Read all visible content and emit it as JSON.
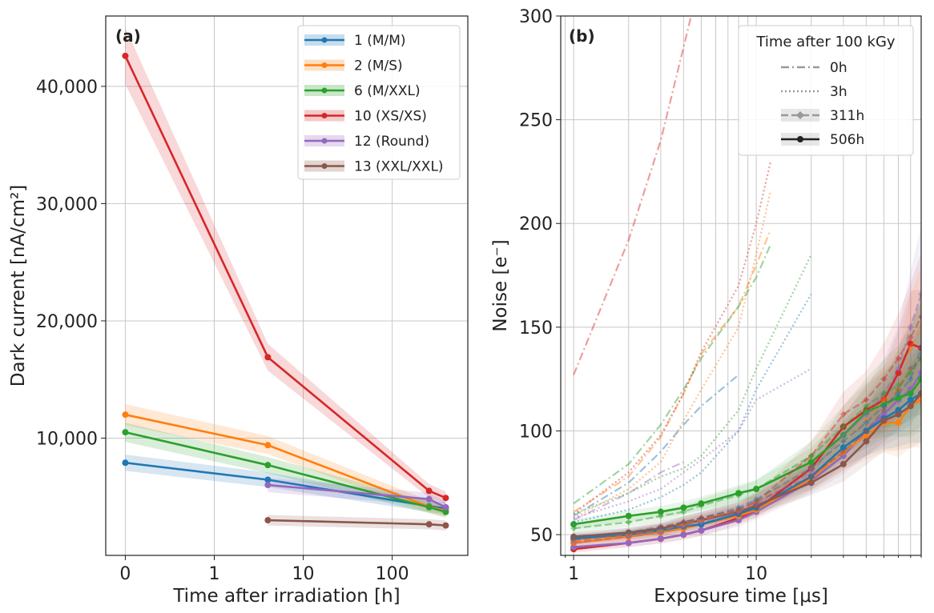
{
  "chart_data": [
    {
      "type": "line",
      "panel_label": "(a)",
      "xlabel": "Time after irradiation [h]",
      "ylabel": "Dark current [nA/cm²]",
      "xscale": "symlog",
      "xticks": [
        0,
        1,
        10,
        100
      ],
      "xtick_labels": [
        "0",
        "1",
        "10",
        "100"
      ],
      "ylim": [
        0,
        46000
      ],
      "yticks": [
        10000,
        20000,
        30000,
        40000
      ],
      "ytick_labels": [
        "10,000",
        "20,000",
        "30,000",
        "40,000"
      ],
      "grid": true,
      "legend_position": "top-right",
      "series": [
        {
          "name": "1 (M/M)",
          "color": "#1f77b4",
          "x": [
            0,
            4,
            260,
            400
          ],
          "y": [
            7900,
            6450,
            4200,
            4000
          ]
        },
        {
          "name": "2 (M/S)",
          "color": "#ff7f0e",
          "x": [
            0,
            4,
            260,
            400
          ],
          "y": [
            12000,
            9400,
            4150,
            3800
          ]
        },
        {
          "name": "6 (M/XXL)",
          "color": "#2ca02c",
          "x": [
            0,
            4,
            260,
            400
          ],
          "y": [
            10500,
            7700,
            4100,
            3700
          ]
        },
        {
          "name": "10 (XS/XS)",
          "color": "#d62728",
          "x": [
            0,
            4,
            260,
            400
          ],
          "y": [
            42600,
            16900,
            5500,
            4900
          ]
        },
        {
          "name": "12 (Round)",
          "color": "#9467bd",
          "x": [
            4,
            260,
            400
          ],
          "y": [
            6000,
            4800,
            4100
          ]
        },
        {
          "name": "13 (XXL/XXL)",
          "color": "#8c564b",
          "x": [
            4,
            260,
            400
          ],
          "y": [
            3000,
            2650,
            2550
          ]
        }
      ]
    },
    {
      "type": "line",
      "panel_label": "(b)",
      "xlabel": "Exposure time [μs]",
      "ylabel": "Noise [e⁻]",
      "xscale": "log",
      "xlim": [
        0.85,
        80
      ],
      "xticks": [
        1,
        10
      ],
      "xtick_labels": [
        "1",
        "10"
      ],
      "ylim": [
        40,
        300
      ],
      "yticks": [
        50,
        100,
        150,
        200,
        250,
        300
      ],
      "ytick_labels": [
        "50",
        "100",
        "150",
        "200",
        "250",
        "300"
      ],
      "grid": true,
      "legend_title": "Time after 100 kGy",
      "legend_position": "top-right",
      "legend_entries": [
        {
          "label": "0h",
          "style": "dashdot"
        },
        {
          "label": "3h",
          "style": "dotted"
        },
        {
          "label": "311h",
          "style": "dashed"
        },
        {
          "label": "506h",
          "style": "solid"
        }
      ],
      "x_full": [
        1,
        2,
        3,
        4,
        5,
        8,
        10,
        20,
        30,
        40,
        50,
        60,
        70,
        80
      ],
      "series": [
        {
          "color": "#d62728",
          "style": "solid",
          "y": [
            43,
            46,
            48,
            50,
            52,
            58,
            62,
            82,
            102,
            110,
            115,
            128,
            142,
            140
          ]
        },
        {
          "color": "#9467bd",
          "style": "solid",
          "y": [
            44,
            46,
            48,
            50,
            52,
            57,
            61,
            76,
            88,
            100,
            108,
            115,
            120,
            128
          ]
        },
        {
          "color": "#ff7f0e",
          "style": "solid",
          "y": [
            46,
            49,
            51,
            53,
            55,
            59,
            62,
            77,
            90,
            98,
            104,
            104,
            112,
            115
          ]
        },
        {
          "color": "#1f77b4",
          "style": "solid",
          "y": [
            48,
            50,
            52,
            54,
            55,
            60,
            63,
            78,
            92,
            100,
            106,
            110,
            115,
            118
          ]
        },
        {
          "color": "#8c564b",
          "style": "solid",
          "y": [
            49,
            51,
            53,
            55,
            57,
            61,
            64,
            75,
            84,
            95,
            105,
            108,
            112,
            118
          ]
        },
        {
          "color": "#2ca02c",
          "style": "solid",
          "y": [
            55,
            59,
            61,
            63,
            65,
            70,
            72,
            85,
            98,
            109,
            113,
            116,
            118,
            125
          ]
        },
        {
          "color": "#d62728",
          "style": "dashed",
          "y": [
            47,
            50,
            53,
            56,
            58,
            62,
            66,
            88,
            108,
            115,
            125,
            135,
            145,
            155
          ]
        },
        {
          "color": "#9467bd",
          "style": "dashed",
          "y": [
            46,
            49,
            51,
            54,
            56,
            61,
            65,
            80,
            98,
            108,
            118,
            130,
            150,
            166
          ]
        },
        {
          "color": "#ff7f0e",
          "style": "dashed",
          "y": [
            47,
            50,
            52,
            55,
            57,
            62,
            66,
            82,
            95,
            105,
            115,
            120,
            140,
            150
          ]
        },
        {
          "color": "#1f77b4",
          "style": "dashed",
          "y": [
            48,
            51,
            53,
            56,
            58,
            63,
            67,
            82,
            95,
            104,
            112,
            118,
            125,
            140
          ]
        },
        {
          "color": "#8c564b",
          "style": "dashed",
          "y": [
            49,
            51,
            54,
            56,
            58,
            62,
            66,
            78,
            90,
            100,
            110,
            120,
            130,
            135
          ]
        },
        {
          "color": "#2ca02c",
          "style": "dashed",
          "y": [
            53,
            56,
            59,
            61,
            64,
            69,
            72,
            88,
            102,
            112,
            118,
            122,
            128,
            135
          ]
        },
        {
          "color": "#d62728",
          "style": "dashdot",
          "x": [
            1,
            2,
            3,
            4,
            5
          ],
          "y": [
            127,
            192,
            240,
            285,
            320
          ]
        },
        {
          "color": "#ff7f0e",
          "style": "dashdot",
          "x": [
            1,
            2,
            3,
            4,
            5,
            8,
            10,
            12
          ],
          "y": [
            61,
            78,
            97,
            118,
            137,
            160,
            180,
            197
          ]
        },
        {
          "color": "#2ca02c",
          "style": "dashdot",
          "x": [
            1,
            2,
            3,
            4,
            5,
            8,
            10,
            12
          ],
          "y": [
            65,
            84,
            103,
            120,
            135,
            160,
            174,
            190
          ]
        },
        {
          "color": "#1f77b4",
          "style": "dashdot",
          "x": [
            1,
            2,
            3,
            4,
            5,
            8
          ],
          "y": [
            59,
            75,
            90,
            103,
            112,
            127
          ]
        },
        {
          "color": "#9467bd",
          "style": "dashdot",
          "x": [
            1,
            2,
            3,
            4
          ],
          "y": [
            57,
            70,
            80,
            85
          ]
        },
        {
          "color": "#d62728",
          "style": "dotted",
          "x": [
            1,
            2,
            3,
            4,
            5,
            8,
            10,
            12
          ],
          "y": [
            60,
            80,
            98,
            118,
            138,
            170,
            200,
            230
          ]
        },
        {
          "color": "#ff7f0e",
          "style": "dotted",
          "x": [
            1,
            2,
            3,
            4,
            5,
            8,
            10,
            12
          ],
          "y": [
            58,
            72,
            85,
            105,
            120,
            150,
            185,
            216
          ]
        },
        {
          "color": "#2ca02c",
          "style": "dotted",
          "x": [
            1,
            2,
            3,
            4,
            5,
            8,
            10,
            20
          ],
          "y": [
            60,
            70,
            78,
            82,
            88,
            110,
            130,
            185
          ]
        },
        {
          "color": "#1f77b4",
          "style": "dotted",
          "x": [
            1,
            2,
            3,
            4,
            5,
            8,
            10,
            20
          ],
          "y": [
            56,
            62,
            68,
            74,
            80,
            100,
            120,
            166
          ]
        },
        {
          "color": "#9467bd",
          "style": "dotted",
          "x": [
            1,
            2,
            3,
            4,
            5,
            8,
            10,
            20
          ],
          "y": [
            58,
            66,
            72,
            80,
            86,
            100,
            115,
            130
          ]
        }
      ]
    }
  ]
}
